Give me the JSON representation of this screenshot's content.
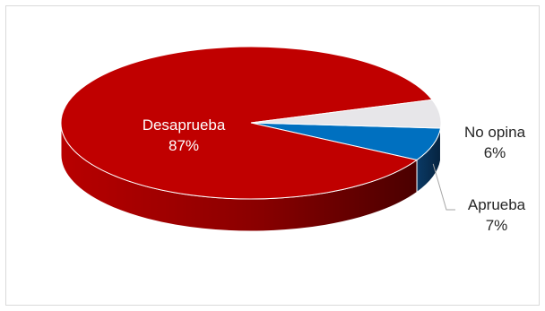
{
  "chart_data": {
    "type": "pie",
    "title": "",
    "style": "3d",
    "categories": [
      "Desaprueba",
      "Aprueba",
      "No opina"
    ],
    "values": [
      87,
      7,
      6
    ],
    "value_labels": [
      "87%",
      "7%",
      "6%"
    ],
    "colors": {
      "Desaprueba": "#c00000",
      "Aprueba": "#0070c0",
      "No opina": "#e7e6e9"
    },
    "legend": "none"
  }
}
